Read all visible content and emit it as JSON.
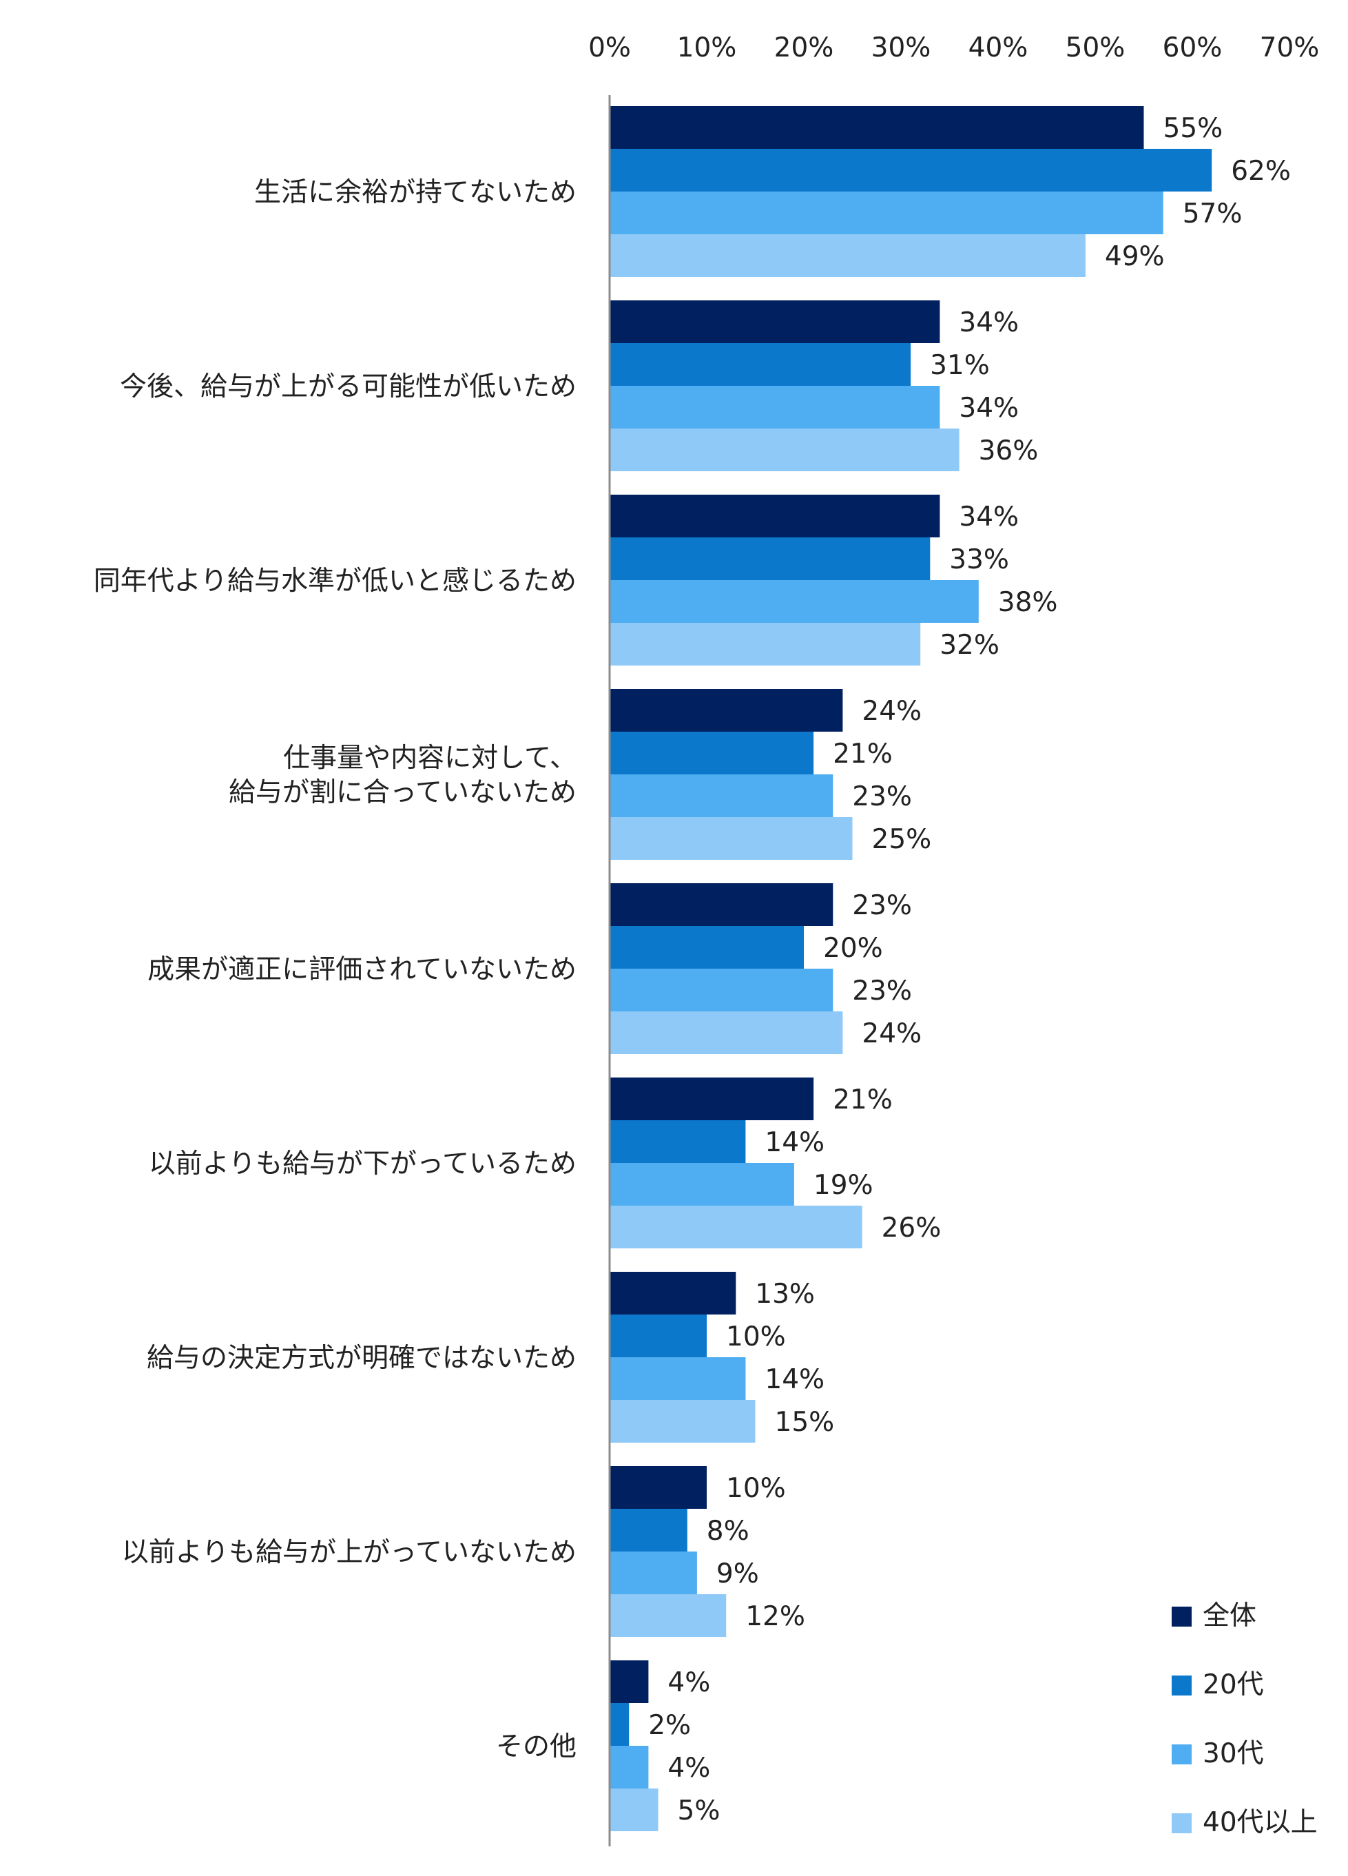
{
  "chart_data": {
    "type": "bar",
    "orientation": "horizontal",
    "xlim": [
      0,
      70
    ],
    "x_unit": "%",
    "x_ticks": [
      "0%",
      "10%",
      "20%",
      "30%",
      "40%",
      "50%",
      "60%",
      "70%"
    ],
    "x_axis_position": "top",
    "grid": false,
    "legend_position": "bottom-right",
    "categories": [
      [
        "生活に余裕が持てないため"
      ],
      [
        "今後、給与が上がる可能性が低いため"
      ],
      [
        "同年代より給与水準が低いと感じるため"
      ],
      [
        "仕事量や内容に対して、",
        "給与が割に合っていないため"
      ],
      [
        "成果が適正に評価されていないため"
      ],
      [
        "以前よりも給与が下がっているため"
      ],
      [
        "給与の決定方式が明確ではないため"
      ],
      [
        "以前よりも給与が上がっていないため"
      ],
      [
        "その他"
      ]
    ],
    "series": [
      {
        "name": "全体",
        "color": "#002060",
        "values": [
          55,
          34,
          34,
          24,
          23,
          21,
          13,
          10,
          4
        ]
      },
      {
        "name": "20代",
        "color": "#0B78CC",
        "values": [
          62,
          31,
          33,
          21,
          20,
          14,
          10,
          8,
          2
        ]
      },
      {
        "name": "30代",
        "color": "#4FADF2",
        "values": [
          57,
          34,
          38,
          23,
          23,
          19,
          14,
          9,
          4
        ]
      },
      {
        "name": "40代以上",
        "color": "#8FC9F7",
        "values": [
          49,
          36,
          32,
          25,
          24,
          26,
          15,
          12,
          5
        ]
      }
    ]
  }
}
